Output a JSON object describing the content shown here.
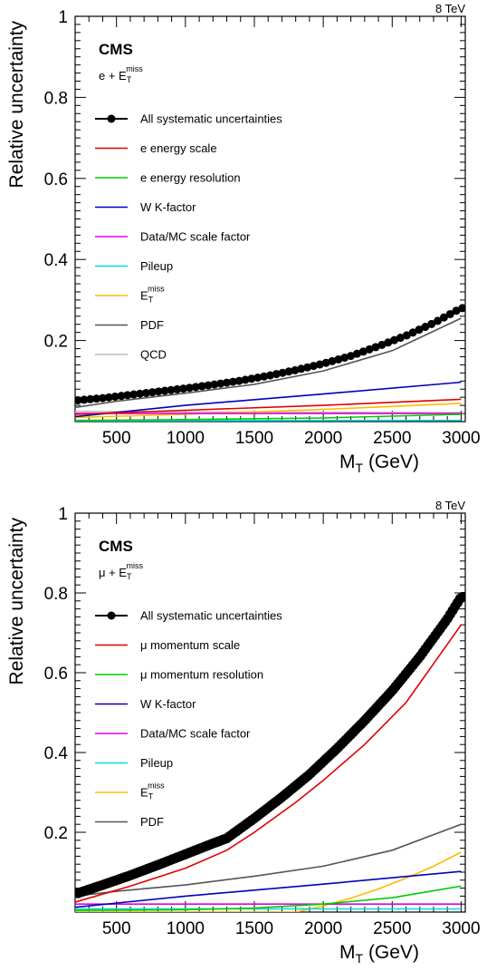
{
  "chart_data": [
    {
      "type": "line",
      "energy_label": "8 TeV",
      "experiment": "CMS",
      "channel": {
        "lead": "e + E",
        "sub": "T",
        "sup": "miss"
      },
      "xlabel": {
        "main": "M",
        "sub": "T",
        "tail": " (GeV)"
      },
      "ylabel": "Relative uncertainty",
      "xlim": [
        200,
        3030
      ],
      "ylim": [
        0,
        1
      ],
      "xticks": [
        500,
        1000,
        1500,
        2000,
        2500,
        3000
      ],
      "yticks": [
        0.2,
        0.4,
        0.6,
        0.8,
        1
      ],
      "ytick_labels": [
        "0.2",
        "0.4",
        "0.6",
        "0.8",
        "1"
      ],
      "legend_position": "left",
      "series": [
        {
          "name": "All systematic uncertainties",
          "color": "#000000",
          "style": "markers",
          "x": [
            200,
            400,
            600,
            800,
            1000,
            1200,
            1400,
            1600,
            1800,
            2000,
            2200,
            2400,
            2600,
            2800,
            3000
          ],
          "y": [
            0.052,
            0.058,
            0.066,
            0.074,
            0.082,
            0.091,
            0.101,
            0.113,
            0.127,
            0.143,
            0.162,
            0.186,
            0.212,
            0.243,
            0.28
          ]
        },
        {
          "name": "e energy scale",
          "color": "#e00000",
          "x": [
            200,
            1000,
            2000,
            3000
          ],
          "y": [
            0.018,
            0.028,
            0.04,
            0.055
          ]
        },
        {
          "name": "e energy resolution",
          "color": "#00cc00",
          "x": [
            200,
            1000,
            2000,
            3000
          ],
          "y": [
            0.003,
            0.005,
            0.009,
            0.018
          ]
        },
        {
          "name": "W K-factor",
          "color": "#0000bb",
          "x": [
            200,
            1000,
            2000,
            3000
          ],
          "y": [
            0.012,
            0.04,
            0.068,
            0.097
          ]
        },
        {
          "name": "Data/MC scale factor",
          "color": "#e000e0",
          "x": [
            200,
            3000
          ],
          "y": [
            0.02,
            0.02
          ]
        },
        {
          "name": "Pileup",
          "color": "#00dddd",
          "x": [
            200,
            3000
          ],
          "y": [
            0.002,
            0.003
          ]
        },
        {
          "name_main": "E",
          "name_sub": "T",
          "name_sup": "miss",
          "color": "#ffbb00",
          "x": [
            200,
            1000,
            2000,
            3000
          ],
          "y": [
            0.01,
            0.018,
            0.03,
            0.045
          ]
        },
        {
          "name": "PDF",
          "color": "#555555",
          "x": [
            200,
            500,
            1000,
            1500,
            2000,
            2500,
            3000
          ],
          "y": [
            0.035,
            0.05,
            0.07,
            0.092,
            0.125,
            0.175,
            0.255
          ]
        },
        {
          "name": "QCD",
          "color": "#bbbbbb",
          "x": [
            200,
            1000,
            2000,
            3000
          ],
          "y": [
            0.025,
            0.024,
            0.023,
            0.022
          ]
        }
      ]
    },
    {
      "type": "line",
      "energy_label": "8 TeV",
      "experiment": "CMS",
      "channel": {
        "lead": "μ + E",
        "sub": "T",
        "sup": "miss"
      },
      "xlabel": {
        "main": "M",
        "sub": "T",
        "tail": " (GeV)"
      },
      "ylabel": "Relative uncertainty",
      "xlim": [
        200,
        3030
      ],
      "ylim": [
        0,
        1
      ],
      "xticks": [
        500,
        1000,
        1500,
        2000,
        2500,
        3000
      ],
      "yticks": [
        0.2,
        0.4,
        0.6,
        0.8,
        1
      ],
      "ytick_labels": [
        "0.2",
        "0.4",
        "0.6",
        "0.8",
        "1"
      ],
      "legend_position": "left",
      "series": [
        {
          "name": "All systematic uncertainties",
          "color": "#000000",
          "style": "markers",
          "x": [
            200,
            400,
            600,
            800,
            1000,
            1200,
            1300,
            1500,
            1700,
            1900,
            2100,
            2300,
            2500,
            2700,
            2900,
            3000
          ],
          "y": [
            0.045,
            0.068,
            0.092,
            0.118,
            0.145,
            0.172,
            0.185,
            0.235,
            0.288,
            0.345,
            0.41,
            0.48,
            0.555,
            0.64,
            0.735,
            0.79
          ]
        },
        {
          "name": "μ momentum scale",
          "color": "#e00000",
          "x": [
            200,
            600,
            1000,
            1300,
            1500,
            1800,
            2000,
            2300,
            2600,
            3000
          ],
          "y": [
            0.025,
            0.065,
            0.11,
            0.155,
            0.2,
            0.275,
            0.33,
            0.42,
            0.525,
            0.72
          ]
        },
        {
          "name": "μ momentum resolution",
          "color": "#00cc00",
          "x": [
            200,
            1000,
            1500,
            2000,
            2500,
            3000
          ],
          "y": [
            0.004,
            0.006,
            0.01,
            0.02,
            0.036,
            0.065
          ]
        },
        {
          "name": "W K-factor",
          "color": "#0000bb",
          "x": [
            200,
            1000,
            2000,
            3000
          ],
          "y": [
            0.012,
            0.04,
            0.07,
            0.102
          ]
        },
        {
          "name": "Data/MC scale factor",
          "color": "#e000e0",
          "x": [
            200,
            3000
          ],
          "y": [
            0.02,
            0.02
          ]
        },
        {
          "name": "Pileup",
          "color": "#00dddd",
          "x": [
            200,
            3000
          ],
          "y": [
            0.008,
            0.008
          ]
        },
        {
          "name_main": "E",
          "name_sub": "T",
          "name_sup": "miss",
          "color": "#ffbb00",
          "x": [
            200,
            1800,
            2000,
            2200,
            2400,
            2600,
            2800,
            3000
          ],
          "y": [
            0.0,
            0.0,
            0.015,
            0.035,
            0.058,
            0.085,
            0.115,
            0.15
          ]
        },
        {
          "name": "PDF",
          "color": "#555555",
          "x": [
            200,
            500,
            1000,
            1500,
            2000,
            2500,
            3000
          ],
          "y": [
            0.04,
            0.052,
            0.068,
            0.09,
            0.115,
            0.155,
            0.22
          ]
        }
      ]
    }
  ]
}
